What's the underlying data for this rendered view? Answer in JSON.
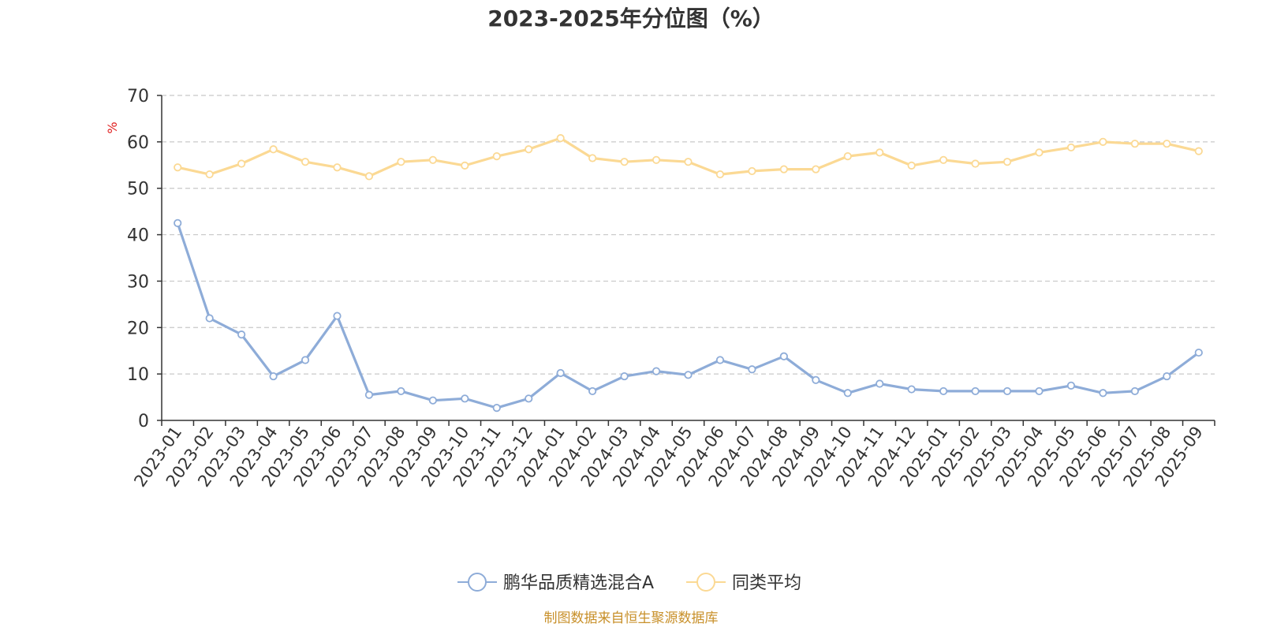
{
  "chart_data": {
    "type": "line",
    "title": "2023-2025年分位图（%）",
    "ylabel": "%",
    "ylim": [
      0,
      70
    ],
    "yticks": [
      "0",
      "10",
      "20",
      "30",
      "40",
      "50",
      "60",
      "70"
    ],
    "grid": true,
    "legend_position": "bottom",
    "categories": [
      "2023-01",
      "2023-02",
      "2023-03",
      "2023-04",
      "2023-05",
      "2023-06",
      "2023-07",
      "2023-08",
      "2023-09",
      "2023-10",
      "2023-11",
      "2023-12",
      "2024-01",
      "2024-02",
      "2024-03",
      "2024-04",
      "2024-05",
      "2024-06",
      "2024-07",
      "2024-08",
      "2024-09",
      "2024-10",
      "2024-11",
      "2024-12",
      "2025-01",
      "2025-02",
      "2025-03",
      "2025-04",
      "2025-05",
      "2025-06",
      "2025-07",
      "2025-08",
      "2025-09"
    ],
    "series": [
      {
        "name": "鹏华品质精选混合A",
        "color": "#8eacd8",
        "values": [
          42.5,
          22,
          18.5,
          9.5,
          13,
          22.5,
          5.5,
          6.3,
          4.3,
          4.7,
          2.7,
          4.7,
          10.2,
          6.3,
          9.5,
          10.6,
          9.8,
          13,
          11,
          13.8,
          8.7,
          5.9,
          7.9,
          6.7,
          6.3,
          6.3,
          6.3,
          6.3,
          7.5,
          5.9,
          6.3,
          9.5,
          14.6
        ]
      },
      {
        "name": "同类平均",
        "color": "#fbd994",
        "values": [
          54.5,
          53,
          55.3,
          58.4,
          55.7,
          54.5,
          52.6,
          55.7,
          56.1,
          54.9,
          56.9,
          58.4,
          60.8,
          56.5,
          55.7,
          56.1,
          55.7,
          53,
          53.7,
          54.1,
          54.1,
          56.9,
          57.7,
          54.9,
          56.1,
          55.3,
          55.7,
          57.7,
          58.8,
          60,
          59.6,
          59.6,
          58
        ]
      }
    ]
  },
  "source_text": "制图数据来自恒生聚源数据库",
  "source_color": "#c8902a",
  "unit_color": "#e02020"
}
